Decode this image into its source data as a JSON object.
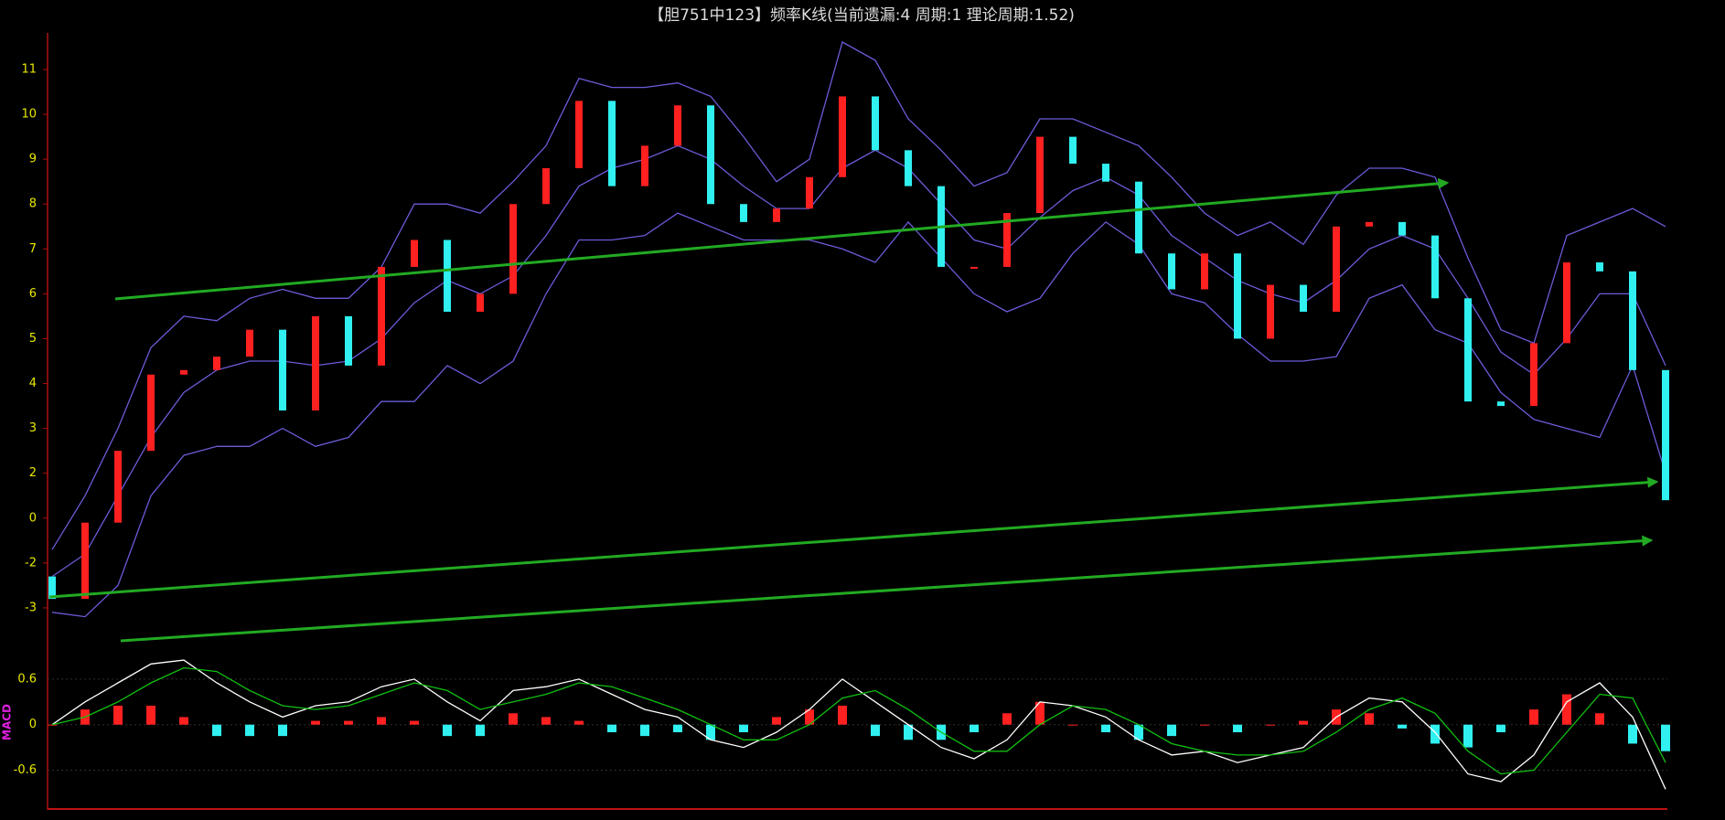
{
  "chart_data": [
    {
      "type": "candlestick",
      "title": "【胆751中123】频率K线(当前遗漏:4 周期:1 理论周期:1.52)",
      "ylim": [
        -4.1,
        11.8
      ],
      "yticks": [
        11,
        10,
        9,
        8,
        7,
        6,
        5,
        4,
        3,
        2,
        0,
        -2,
        -3
      ],
      "up_color": "#ff2020",
      "down_color": "#30f0f0",
      "band_color": "#6a5cd8",
      "open": [
        -2.3,
        -2.8,
        -0.2,
        2.5,
        4.2,
        4.3,
        4.6,
        5.2,
        3.4,
        5.5,
        4.4,
        6.6,
        7.2,
        5.6,
        6.0,
        8.0,
        8.8,
        10.3,
        8.4,
        9.3,
        10.2,
        8.0,
        7.6,
        7.9,
        8.6,
        10.4,
        9.2,
        8.4,
        6.6,
        6.6,
        7.8,
        9.5,
        8.9,
        8.5,
        6.9,
        6.1,
        6.9,
        5.0,
        6.2,
        5.6,
        7.5,
        7.6,
        7.3,
        5.9,
        3.6,
        3.5,
        4.9,
        6.7,
        6.5,
        4.3
      ],
      "close": [
        -2.8,
        -0.2,
        2.5,
        4.2,
        4.3,
        4.6,
        5.2,
        3.4,
        5.5,
        4.4,
        6.6,
        7.2,
        5.6,
        6.0,
        8.0,
        8.8,
        10.3,
        8.4,
        9.3,
        10.2,
        8.0,
        7.6,
        7.9,
        8.6,
        10.4,
        9.2,
        8.4,
        6.6,
        6.6,
        7.8,
        9.5,
        8.9,
        8.5,
        6.9,
        6.1,
        6.9,
        5.0,
        6.2,
        5.6,
        7.5,
        7.6,
        7.3,
        5.9,
        3.6,
        3.5,
        4.9,
        6.7,
        6.5,
        4.3,
        0.8
      ],
      "upper": [
        -1.4,
        1.0,
        3.0,
        4.8,
        5.5,
        5.4,
        5.9,
        6.1,
        5.9,
        5.9,
        6.6,
        8.0,
        8.0,
        7.8,
        8.5,
        9.3,
        10.8,
        10.6,
        10.6,
        10.7,
        10.4,
        9.5,
        8.5,
        9.0,
        11.6,
        11.2,
        9.9,
        9.2,
        8.4,
        8.7,
        9.9,
        9.9,
        9.6,
        9.3,
        8.6,
        7.8,
        7.3,
        7.6,
        7.1,
        8.2,
        8.8,
        8.8,
        8.6,
        6.8,
        5.2,
        4.9,
        7.3,
        7.6,
        7.9,
        7.5
      ],
      "middle": [
        -2.3,
        -1.6,
        1.0,
        2.8,
        3.8,
        4.3,
        4.5,
        4.5,
        4.4,
        4.5,
        5.0,
        5.8,
        6.3,
        6.0,
        6.4,
        7.3,
        8.4,
        8.8,
        9.0,
        9.3,
        9.0,
        8.4,
        7.9,
        7.9,
        8.8,
        9.2,
        8.8,
        8.0,
        7.2,
        7.0,
        7.7,
        8.3,
        8.6,
        8.2,
        7.3,
        6.8,
        6.3,
        6.0,
        5.8,
        6.3,
        7.0,
        7.3,
        7.0,
        5.9,
        4.7,
        4.2,
        5.0,
        6.0,
        6.0,
        4.4
      ],
      "lower": [
        -3.1,
        -3.2,
        -2.5,
        1.0,
        2.4,
        2.6,
        2.6,
        3.0,
        2.6,
        2.8,
        3.6,
        3.6,
        4.4,
        4.0,
        4.5,
        6.0,
        7.2,
        7.2,
        7.3,
        7.8,
        7.5,
        7.2,
        7.2,
        7.2,
        7.0,
        6.7,
        7.6,
        6.8,
        6.0,
        5.6,
        5.9,
        6.9,
        7.6,
        7.1,
        6.0,
        5.8,
        5.1,
        4.5,
        4.5,
        4.6,
        5.9,
        6.2,
        5.2,
        4.9,
        3.8,
        3.2,
        3.0,
        2.8,
        4.4,
        2.0
      ]
    },
    {
      "type": "macd",
      "label": "MACD",
      "ylim": [
        -1.1,
        0.9
      ],
      "yticks": [
        0.6,
        0,
        -0.6
      ],
      "grid": true,
      "dif_color": "#ffffff",
      "dea_color": "#10c010",
      "histogram": [
        0,
        0.2,
        0.25,
        0.25,
        0.1,
        -0.15,
        -0.15,
        -0.15,
        0.05,
        0.05,
        0.1,
        0.05,
        -0.15,
        -0.15,
        0.15,
        0.1,
        0.05,
        -0.1,
        -0.15,
        -0.1,
        -0.2,
        -0.1,
        0.1,
        0.2,
        0.25,
        -0.15,
        -0.2,
        -0.2,
        -0.1,
        0.15,
        0.3,
        0,
        -0.1,
        -0.2,
        -0.15,
        0,
        -0.1,
        0,
        0.05,
        0.2,
        0.15,
        -0.05,
        -0.25,
        -0.3,
        -0.1,
        0.2,
        0.4,
        0.15,
        -0.25,
        -0.35
      ],
      "dif": [
        0.0,
        0.3,
        0.55,
        0.8,
        0.85,
        0.55,
        0.3,
        0.1,
        0.25,
        0.3,
        0.5,
        0.6,
        0.3,
        0.05,
        0.45,
        0.5,
        0.6,
        0.4,
        0.2,
        0.1,
        -0.2,
        -0.3,
        -0.1,
        0.2,
        0.6,
        0.3,
        0.0,
        -0.3,
        -0.45,
        -0.2,
        0.3,
        0.25,
        0.1,
        -0.2,
        -0.4,
        -0.35,
        -0.5,
        -0.4,
        -0.3,
        0.1,
        0.35,
        0.3,
        -0.1,
        -0.65,
        -0.75,
        -0.4,
        0.3,
        0.55,
        0.1,
        -0.85
      ],
      "dea": [
        0.0,
        0.1,
        0.3,
        0.55,
        0.75,
        0.7,
        0.45,
        0.25,
        0.2,
        0.25,
        0.4,
        0.55,
        0.45,
        0.2,
        0.3,
        0.4,
        0.55,
        0.5,
        0.35,
        0.2,
        0.0,
        -0.2,
        -0.2,
        0.0,
        0.35,
        0.45,
        0.2,
        -0.1,
        -0.35,
        -0.35,
        0.0,
        0.25,
        0.2,
        0.0,
        -0.25,
        -0.35,
        -0.4,
        -0.4,
        -0.35,
        -0.1,
        0.2,
        0.35,
        0.15,
        -0.35,
        -0.65,
        -0.6,
        -0.1,
        0.4,
        0.35,
        -0.5
      ]
    }
  ]
}
